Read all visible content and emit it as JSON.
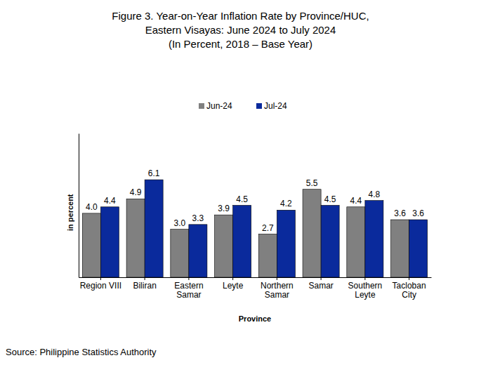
{
  "chart_data": {
    "type": "bar",
    "title": [
      "Figure 3. Year-on-Year Inflation Rate by Province/HUC,",
      "Eastern Visayas: June 2024 to July 2024",
      "(In Percent, 2018 – Base Year)"
    ],
    "x_label": "Province",
    "y_label": "in percent",
    "source": "Source: Philippine Statistics Authority",
    "categories": [
      "Region VIII",
      "Biliran",
      "Eastern Samar",
      "Leyte",
      "Northern Samar",
      "Samar",
      "Southern Leyte",
      "Tacloban City"
    ],
    "series": [
      {
        "name": "Jun-24",
        "color": "#808080",
        "values": [
          4.0,
          4.9,
          3.0,
          3.9,
          2.7,
          5.5,
          4.4,
          3.6
        ],
        "value_labels": [
          "4.0",
          "4.9",
          "3.0",
          "3.9",
          "2.7",
          "5.5",
          "4.4",
          "3.6"
        ]
      },
      {
        "name": "Jul-24",
        "color": "#0a2a9c",
        "values": [
          4.4,
          6.1,
          3.3,
          4.5,
          4.2,
          4.5,
          4.8,
          3.6
        ],
        "value_labels": [
          "4.4",
          "6.1",
          "3.3",
          "4.5",
          "4.2",
          "4.5",
          "4.8",
          "3.6"
        ]
      }
    ],
    "ylim": [
      0,
      9
    ],
    "grid": false,
    "legend": "top",
    "data_labels": true,
    "tick_labels": "x"
  }
}
